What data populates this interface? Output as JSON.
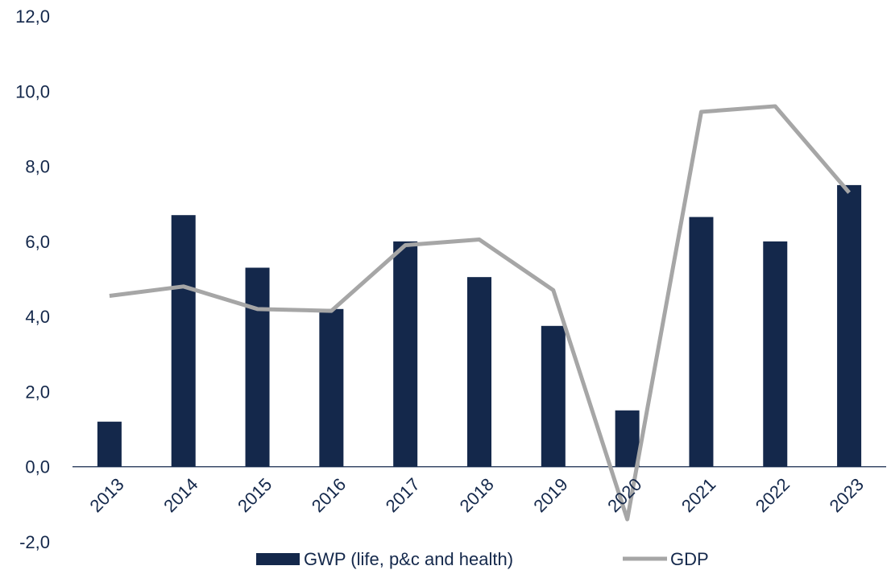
{
  "chart_data": {
    "type": "bar",
    "categories": [
      "2013",
      "2014",
      "2015",
      "2016",
      "2017",
      "2018",
      "2019",
      "2020",
      "2021",
      "2022",
      "2023"
    ],
    "series": [
      {
        "name": "GWP (life, p&c and health)",
        "type": "bar",
        "color": "#14284b",
        "values": [
          1.2,
          6.7,
          5.3,
          4.2,
          6.0,
          5.05,
          3.75,
          1.5,
          6.65,
          6.0,
          7.5
        ]
      },
      {
        "name": "GDP",
        "type": "line",
        "color": "#a6a6a6",
        "values": [
          4.55,
          4.8,
          4.2,
          4.15,
          5.9,
          6.05,
          4.7,
          -1.4,
          9.45,
          9.6,
          7.3
        ]
      }
    ],
    "y_ticks": [
      "12,0",
      "10,0",
      "8,0",
      "6,0",
      "4,0",
      "2,0",
      "0,0",
      "-2,0"
    ],
    "ylim": [
      -2,
      12
    ],
    "grid": false,
    "legend": "bottom"
  }
}
